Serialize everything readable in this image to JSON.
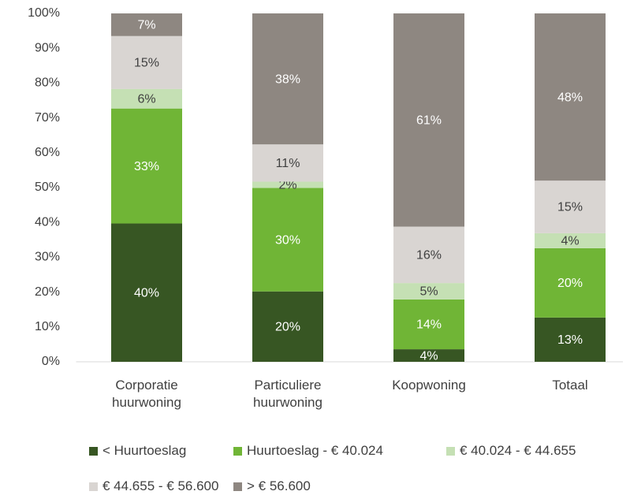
{
  "chart_data": {
    "type": "stacked_bar",
    "categories": [
      "Corporatie huurwoning",
      "Particuliere huurwoning",
      "Koopwoning",
      "Totaal"
    ],
    "series": [
      {
        "name": "< Huurtoeslag",
        "color": "#375623",
        "values": [
          39.7,
          20.2,
          3.6,
          12.7
        ],
        "value_labels": [
          "40%",
          "20%",
          "4%",
          "13%"
        ]
      },
      {
        "name": "Huurtoeslag - € 40.024",
        "color": "#70b536",
        "values": [
          33.0,
          29.7,
          14.3,
          19.9
        ],
        "value_labels": [
          "33%",
          "30%",
          "14%",
          "20%"
        ]
      },
      {
        "name": "€ 40.024 - € 44.655",
        "color": "#c5e0b4",
        "values": [
          5.6,
          1.8,
          4.7,
          4.3
        ],
        "value_labels": [
          "6%",
          "2%",
          "5%",
          "4%"
        ]
      },
      {
        "name": "€ 44.655 - € 56.600",
        "color": "#d9d5d2",
        "values": [
          15.2,
          10.7,
          16.2,
          15.1
        ],
        "value_labels": [
          "15%",
          "11%",
          "16%",
          "15%"
        ]
      },
      {
        "name": "> € 56.600",
        "color": "#8e8781",
        "values": [
          6.5,
          37.6,
          61.2,
          48.0
        ],
        "value_labels": [
          "7%",
          "38%",
          "61%",
          "48%"
        ]
      }
    ],
    "ylim": [
      0,
      100
    ],
    "yticks": [
      {
        "value": 0,
        "label": "0%"
      },
      {
        "value": 10,
        "label": "10%"
      },
      {
        "value": 20,
        "label": "20%"
      },
      {
        "value": 30,
        "label": "30%"
      },
      {
        "value": 40,
        "label": "40%"
      },
      {
        "value": 50,
        "label": "50%"
      },
      {
        "value": 60,
        "label": "60%"
      },
      {
        "value": 70,
        "label": "70%"
      },
      {
        "value": 80,
        "label": "80%"
      },
      {
        "value": 90,
        "label": "90%"
      },
      {
        "value": 100,
        "label": "100%"
      }
    ],
    "legend": "bottom"
  }
}
